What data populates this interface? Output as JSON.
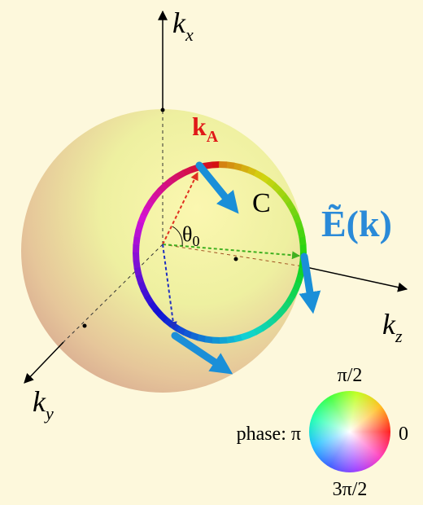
{
  "axes": {
    "kx": {
      "label": "k",
      "sub": "x"
    },
    "ky": {
      "label": "k",
      "sub": "y"
    },
    "kz": {
      "label": "k",
      "sub": "z"
    }
  },
  "vector": {
    "label": "k",
    "sub": "A"
  },
  "curve": {
    "label": "C"
  },
  "angle": {
    "label": "θ",
    "sub": "0"
  },
  "field": {
    "label": "Ẽ(k)"
  },
  "phase_wheel": {
    "title": "phase:",
    "left": "π",
    "top": "π/2",
    "right": "0",
    "bottom": "3π/2"
  }
}
